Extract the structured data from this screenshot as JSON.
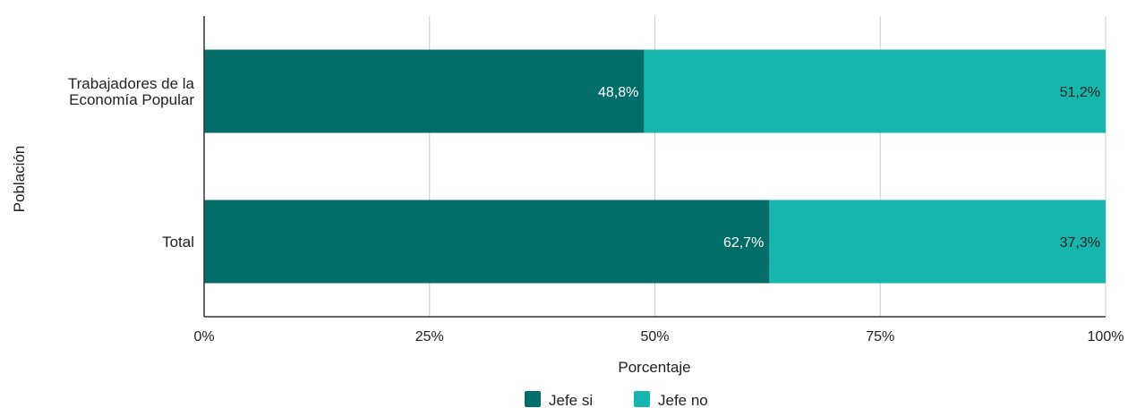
{
  "chart_data": {
    "type": "bar",
    "orientation": "horizontal",
    "stacked": "percent",
    "categories": [
      "Trabajadores de la Economía Popular",
      "Total"
    ],
    "category_label_lines": [
      [
        "Trabajadores de la",
        "Economía Popular"
      ],
      [
        "Total"
      ]
    ],
    "series": [
      {
        "name": "Jefe si",
        "values": [
          48.8,
          62.7
        ],
        "labels": [
          "48,8%",
          "62,7%"
        ],
        "color": "#026e67",
        "label_color": "#ffffff"
      },
      {
        "name": "Jefe no",
        "values": [
          51.2,
          37.3
        ],
        "labels": [
          "51,2%",
          "37,3%"
        ],
        "color": "#16b5ad",
        "label_color": "#222222"
      }
    ],
    "xlabel": "Porcentaje",
    "ylabel": "Población",
    "xlim": [
      0,
      100
    ],
    "xticks": [
      0,
      25,
      50,
      75,
      100
    ],
    "xtick_labels": [
      "0%",
      "25%",
      "50%",
      "75%",
      "100%"
    ],
    "grid": "vertical",
    "legend": "bottom"
  }
}
